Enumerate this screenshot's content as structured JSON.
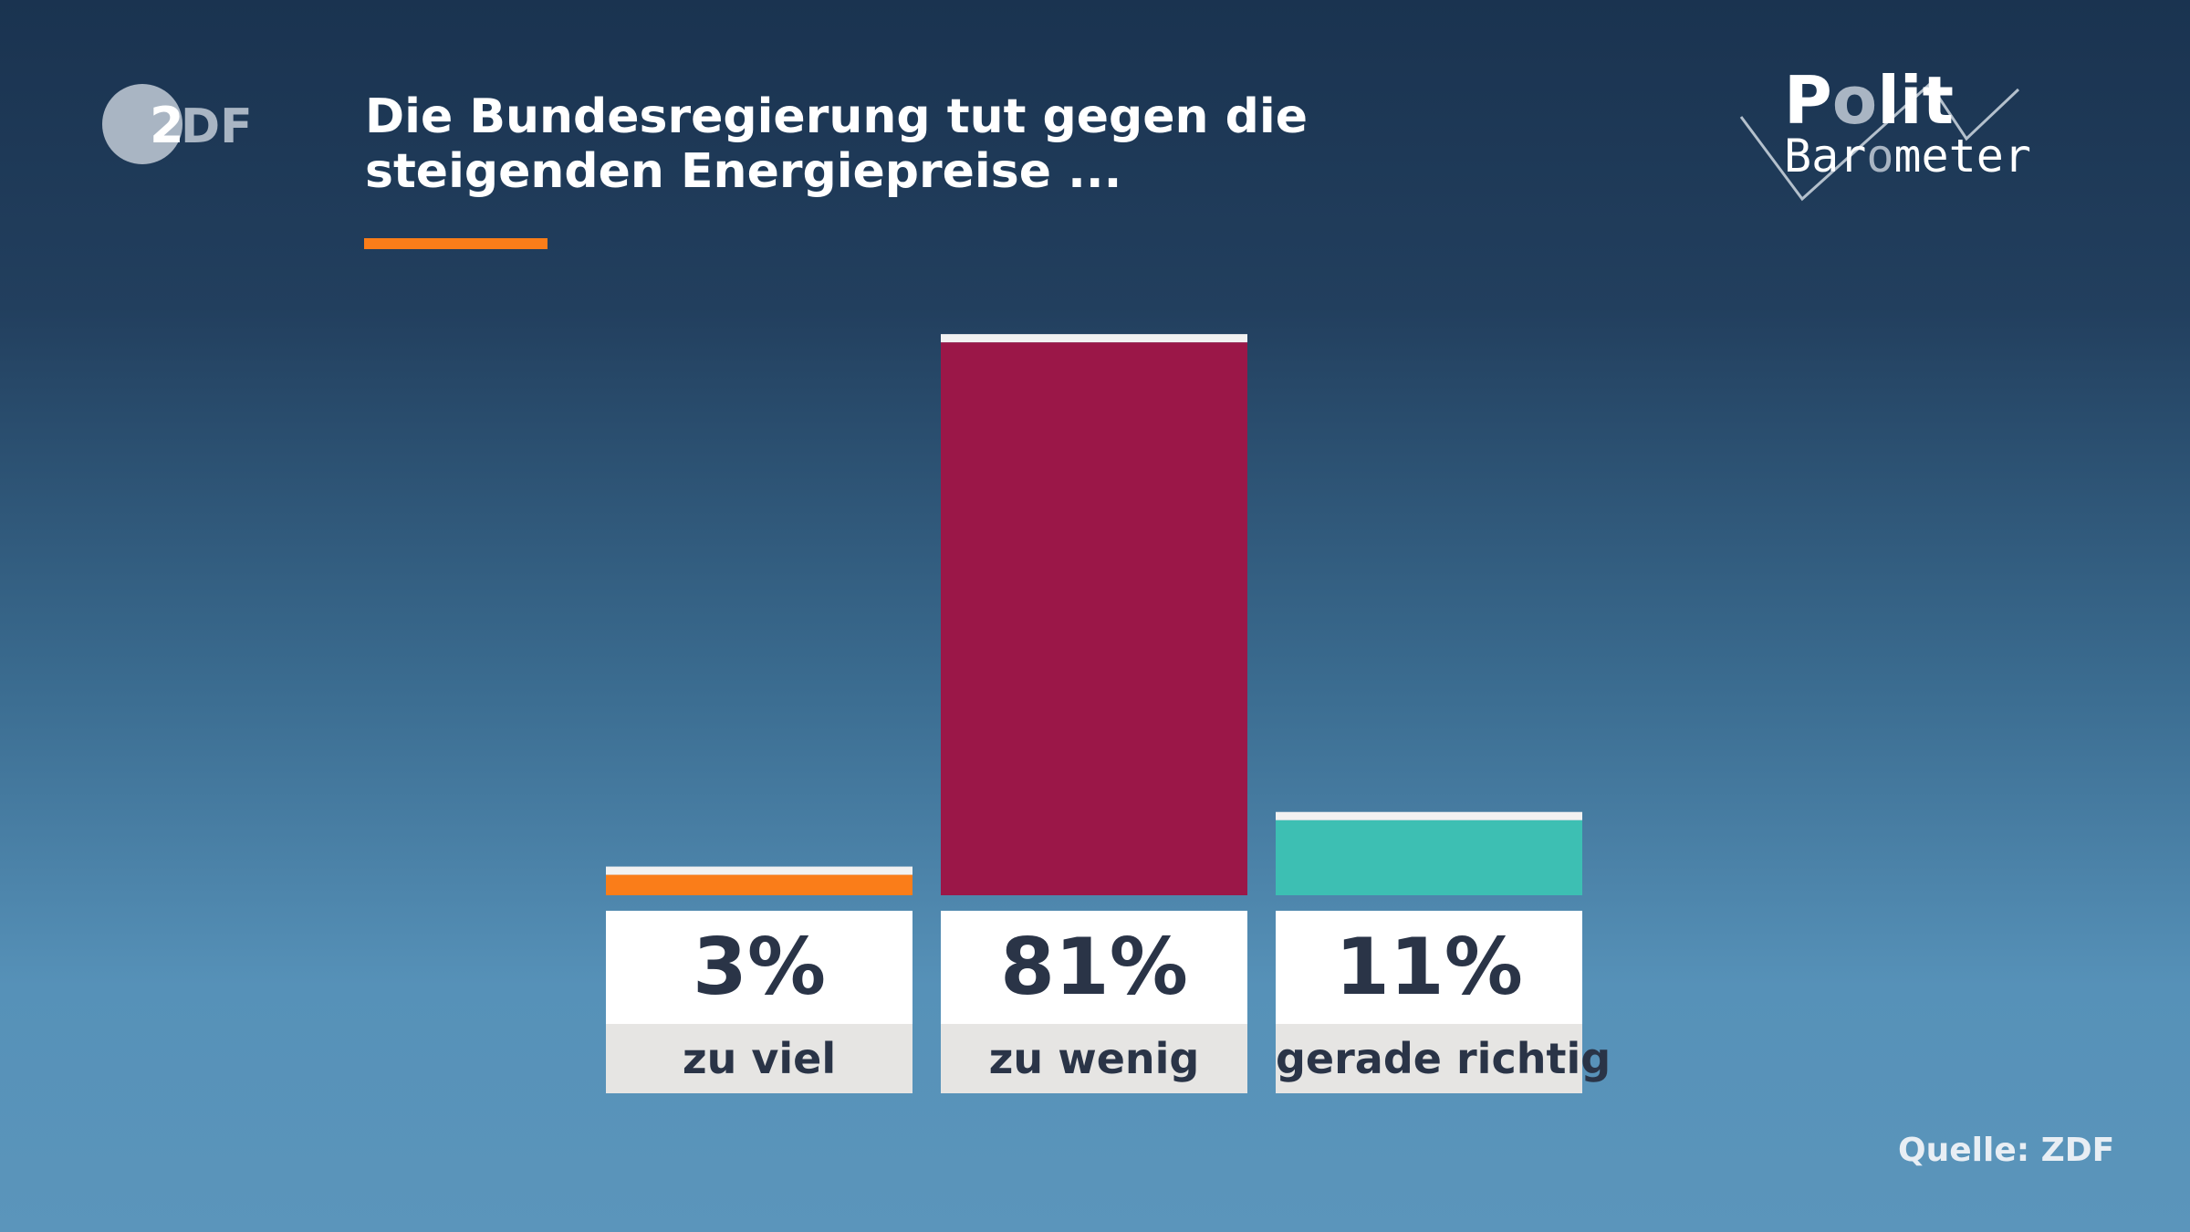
{
  "header": {
    "title": "Die Bundesregierung tut gegen die steigenden Energiepreise ...",
    "logo_left": "ZDF",
    "logo_right": "Polit Barometer"
  },
  "source": "Quelle: ZDF",
  "chart_data": {
    "type": "bar",
    "title": "Die Bundesregierung tut gegen die steigenden Energiepreise ...",
    "categories": [
      "zu viel",
      "zu wenig",
      "gerade richtig"
    ],
    "values": [
      3,
      81,
      11
    ],
    "value_labels": [
      "3%",
      "81%",
      "11%"
    ],
    "unit": "%",
    "colors": [
      "#fa7d19",
      "#9b1748",
      "#3dbfb3"
    ],
    "ylim": [
      0,
      100
    ],
    "grid": false
  }
}
